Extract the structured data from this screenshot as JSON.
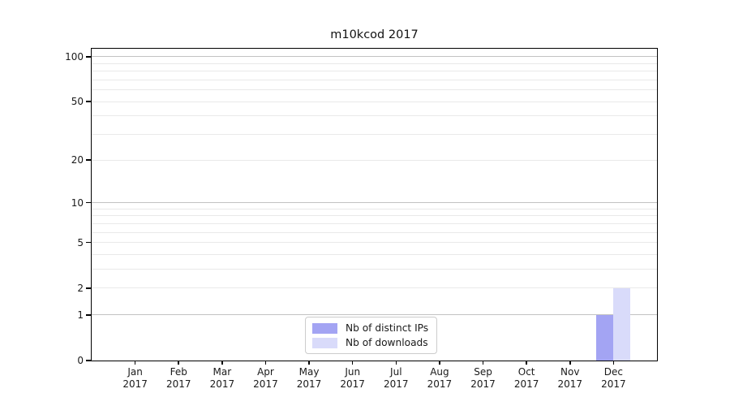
{
  "chart_data": {
    "type": "bar",
    "title": "m10kcod 2017",
    "categories": [
      "Jan 2017",
      "Feb 2017",
      "Mar 2017",
      "Apr 2017",
      "May 2017",
      "Jun 2017",
      "Jul 2017",
      "Aug 2017",
      "Sep 2017",
      "Oct 2017",
      "Nov 2017",
      "Dec 2017"
    ],
    "series": [
      {
        "name": "Nb of distinct IPs",
        "color": "#a3a4f3",
        "values": [
          0,
          0,
          0,
          0,
          0,
          0,
          0,
          0,
          0,
          0,
          0,
          1
        ]
      },
      {
        "name": "Nb of downloads",
        "color": "#d9dbfa",
        "values": [
          0,
          0,
          0,
          0,
          0,
          0,
          0,
          0,
          0,
          0,
          0,
          2
        ]
      }
    ],
    "yscale": "log1p",
    "ylim": [
      0,
      113
    ],
    "y_tick_values": [
      0,
      1,
      2,
      5,
      10,
      20,
      50,
      100
    ],
    "y_major_gridlines": [
      1,
      10,
      100
    ],
    "y_minor_gridlines": [
      2,
      3,
      4,
      5,
      6,
      7,
      8,
      9,
      20,
      30,
      40,
      50,
      60,
      70,
      80,
      90
    ],
    "grid": true,
    "legend_position": "lower center",
    "xlabel": "",
    "ylabel": ""
  },
  "colors": {
    "major_grid": "#c2c2c2",
    "minor_grid": "#e9e9e9",
    "spine": "#000000",
    "background": "#ffffff"
  }
}
